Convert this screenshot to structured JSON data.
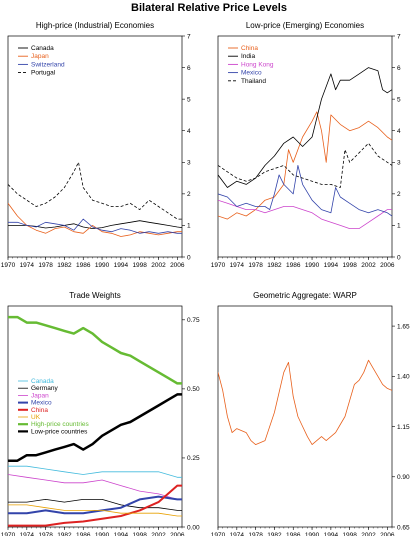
{
  "page_title": "Bilateral Relative Price Levels",
  "chart_data": [
    {
      "type": "line",
      "title": "High-price (Industrial) Economies",
      "ylim": [
        0,
        7
      ],
      "yticks": [
        "0",
        "1",
        "2",
        "3",
        "4",
        "5",
        "6",
        "7"
      ],
      "xticks": [
        "1970",
        "1974",
        "1978",
        "1982",
        "1986",
        "1990",
        "1994",
        "1998",
        "2002",
        "2006"
      ],
      "xlim": [
        1970,
        2007
      ],
      "grid": false,
      "legend_position": "top-left",
      "series": [
        {
          "name": "Canada",
          "color": "#000000",
          "dash": "solid",
          "x": [
            1970,
            1972,
            1974,
            1976,
            1978,
            1980,
            1982,
            1984,
            1986,
            1988,
            1990,
            1992,
            1994,
            1996,
            1998,
            2000,
            2002,
            2004,
            2006,
            2007
          ],
          "y": [
            1.0,
            1.0,
            1.0,
            0.97,
            0.92,
            0.95,
            1.0,
            1.05,
            0.95,
            0.9,
            0.93,
            1.0,
            1.05,
            1.1,
            1.15,
            1.1,
            1.05,
            1.0,
            0.95,
            0.93
          ]
        },
        {
          "name": "Japan",
          "color": "#e8601c",
          "dash": "solid",
          "x": [
            1970,
            1972,
            1974,
            1976,
            1978,
            1980,
            1982,
            1984,
            1986,
            1988,
            1990,
            1992,
            1994,
            1996,
            1998,
            2000,
            2002,
            2004,
            2006,
            2007
          ],
          "y": [
            1.7,
            1.3,
            1.0,
            0.85,
            0.75,
            0.9,
            0.95,
            0.8,
            0.75,
            1.0,
            0.8,
            0.75,
            0.65,
            0.7,
            0.8,
            0.75,
            0.7,
            0.75,
            0.8,
            0.8
          ]
        },
        {
          "name": "Switzerland",
          "color": "#3344aa",
          "dash": "solid",
          "x": [
            1970,
            1972,
            1974,
            1976,
            1978,
            1980,
            1982,
            1984,
            1986,
            1988,
            1990,
            1992,
            1994,
            1996,
            1998,
            2000,
            2002,
            2004,
            2006,
            2007
          ],
          "y": [
            1.1,
            1.1,
            1.0,
            0.95,
            1.1,
            1.05,
            1.0,
            0.85,
            1.2,
            0.95,
            0.85,
            0.8,
            0.9,
            0.85,
            0.75,
            0.8,
            0.75,
            0.8,
            0.75,
            0.75
          ]
        },
        {
          "name": "Portugal",
          "color": "#000000",
          "dash": "dashed",
          "x": [
            1970,
            1972,
            1974,
            1976,
            1978,
            1980,
            1982,
            1984,
            1985,
            1986,
            1988,
            1990,
            1992,
            1994,
            1996,
            1998,
            2000,
            2002,
            2004,
            2006,
            2007
          ],
          "y": [
            2.3,
            2.0,
            1.8,
            1.6,
            1.7,
            1.9,
            2.2,
            2.7,
            3.0,
            2.2,
            1.8,
            1.7,
            1.6,
            1.6,
            1.7,
            1.5,
            1.8,
            1.6,
            1.4,
            1.2,
            1.2
          ]
        }
      ]
    },
    {
      "type": "line",
      "title": "Low-price (Emerging) Economies",
      "ylim": [
        0,
        7
      ],
      "yticks": [
        "0",
        "1",
        "2",
        "3",
        "4",
        "5",
        "6",
        "7"
      ],
      "xticks": [
        "1970",
        "1974",
        "1978",
        "1982",
        "1986",
        "1990",
        "1994",
        "1998",
        "2002",
        "2006"
      ],
      "xlim": [
        1970,
        2007
      ],
      "grid": false,
      "legend_position": "top-left",
      "series": [
        {
          "name": "China",
          "color": "#e8601c",
          "dash": "solid",
          "x": [
            1970,
            1972,
            1974,
            1976,
            1978,
            1980,
            1982,
            1984,
            1985,
            1986,
            1988,
            1990,
            1991,
            1992,
            1993,
            1994,
            1996,
            1998,
            2000,
            2002,
            2004,
            2006,
            2007
          ],
          "y": [
            1.3,
            1.2,
            1.4,
            1.3,
            1.5,
            1.8,
            1.9,
            2.3,
            3.4,
            3.0,
            3.8,
            4.3,
            4.6,
            4.0,
            3.0,
            4.5,
            4.2,
            4.0,
            4.1,
            4.3,
            4.1,
            3.8,
            3.7
          ]
        },
        {
          "name": "India",
          "color": "#000000",
          "dash": "solid",
          "x": [
            1970,
            1972,
            1974,
            1976,
            1978,
            1980,
            1982,
            1984,
            1986,
            1988,
            1990,
            1992,
            1994,
            1995,
            1996,
            1998,
            2000,
            2002,
            2004,
            2005,
            2006,
            2007
          ],
          "y": [
            2.6,
            2.2,
            2.4,
            2.3,
            2.5,
            2.9,
            3.2,
            3.6,
            3.8,
            3.5,
            3.8,
            5.0,
            5.8,
            5.3,
            5.6,
            5.6,
            5.8,
            6.0,
            5.9,
            5.3,
            5.2,
            5.3
          ]
        },
        {
          "name": "Hong Kong",
          "color": "#cc44cc",
          "dash": "solid",
          "x": [
            1970,
            1972,
            1974,
            1976,
            1978,
            1980,
            1982,
            1984,
            1986,
            1988,
            1990,
            1992,
            1994,
            1996,
            1998,
            2000,
            2002,
            2004,
            2006,
            2007
          ],
          "y": [
            1.8,
            1.7,
            1.6,
            1.5,
            1.5,
            1.4,
            1.5,
            1.6,
            1.6,
            1.5,
            1.4,
            1.2,
            1.1,
            1.0,
            0.9,
            0.9,
            1.1,
            1.3,
            1.5,
            1.5
          ]
        },
        {
          "name": "Mexico",
          "color": "#3344aa",
          "dash": "solid",
          "x": [
            1970,
            1972,
            1974,
            1976,
            1978,
            1980,
            1981,
            1982,
            1983,
            1984,
            1986,
            1987,
            1988,
            1990,
            1992,
            1994,
            1995,
            1996,
            1998,
            2000,
            2002,
            2004,
            2006,
            2007
          ],
          "y": [
            2.0,
            1.9,
            1.6,
            1.7,
            1.6,
            1.6,
            1.5,
            2.0,
            2.6,
            2.3,
            2.0,
            2.9,
            2.3,
            1.8,
            1.5,
            1.4,
            2.2,
            1.9,
            1.7,
            1.5,
            1.4,
            1.5,
            1.4,
            1.3
          ]
        },
        {
          "name": "Thailand",
          "color": "#000000",
          "dash": "dashed",
          "x": [
            1970,
            1972,
            1974,
            1976,
            1978,
            1980,
            1982,
            1984,
            1986,
            1988,
            1990,
            1992,
            1994,
            1996,
            1997,
            1998,
            2000,
            2002,
            2004,
            2006,
            2007
          ],
          "y": [
            2.9,
            2.7,
            2.5,
            2.4,
            2.5,
            2.7,
            2.8,
            2.9,
            2.6,
            2.5,
            2.4,
            2.3,
            2.3,
            2.2,
            3.4,
            3.0,
            3.3,
            3.6,
            3.2,
            3.0,
            2.9
          ]
        }
      ]
    },
    {
      "type": "line",
      "title": "Trade Weights",
      "ylim": [
        0,
        0.8
      ],
      "yticks": [
        "0.00",
        "0.25",
        "0.50",
        "0.75"
      ],
      "ytick_values": [
        0,
        0.25,
        0.5,
        0.75
      ],
      "xticks": [
        "1970",
        "1974",
        "1978",
        "1982",
        "1986",
        "1990",
        "1994",
        "1998",
        "2002",
        "2006"
      ],
      "xlim": [
        1970,
        2007
      ],
      "grid": false,
      "legend_position": "center-left",
      "series": [
        {
          "name": "Canada",
          "color": "#44bbdd",
          "dash": "solid",
          "width": 0.8,
          "x": [
            1970,
            1974,
            1978,
            1982,
            1986,
            1990,
            1994,
            1998,
            2002,
            2006,
            2007
          ],
          "y": [
            0.22,
            0.22,
            0.21,
            0.2,
            0.19,
            0.2,
            0.2,
            0.2,
            0.2,
            0.18,
            0.18
          ]
        },
        {
          "name": "Germany",
          "color": "#000000",
          "dash": "solid",
          "width": 0.8,
          "x": [
            1970,
            1974,
            1978,
            1982,
            1986,
            1990,
            1994,
            1998,
            2002,
            2006,
            2007
          ],
          "y": [
            0.09,
            0.09,
            0.1,
            0.09,
            0.1,
            0.1,
            0.08,
            0.07,
            0.07,
            0.06,
            0.06
          ]
        },
        {
          "name": "Japan",
          "color": "#cc44cc",
          "dash": "solid",
          "width": 0.8,
          "x": [
            1970,
            1974,
            1978,
            1982,
            1986,
            1990,
            1994,
            1998,
            2002,
            2006,
            2007
          ],
          "y": [
            0.19,
            0.18,
            0.17,
            0.16,
            0.16,
            0.17,
            0.15,
            0.13,
            0.12,
            0.1,
            0.1
          ]
        },
        {
          "name": "Mexico",
          "color": "#3344aa",
          "dash": "solid",
          "width": 2.0,
          "x": [
            1970,
            1974,
            1978,
            1982,
            1986,
            1990,
            1994,
            1998,
            2002,
            2006,
            2007
          ],
          "y": [
            0.05,
            0.05,
            0.06,
            0.05,
            0.05,
            0.06,
            0.07,
            0.1,
            0.11,
            0.1,
            0.1
          ]
        },
        {
          "name": "China",
          "color": "#dd2222",
          "dash": "solid",
          "width": 2.0,
          "x": [
            1970,
            1974,
            1978,
            1980,
            1982,
            1986,
            1990,
            1994,
            1998,
            2002,
            2004,
            2006,
            2007
          ],
          "y": [
            0.005,
            0.005,
            0.005,
            0.01,
            0.015,
            0.02,
            0.03,
            0.04,
            0.06,
            0.09,
            0.12,
            0.15,
            0.15
          ]
        },
        {
          "name": "UK",
          "color": "#e8a000",
          "dash": "solid",
          "width": 0.8,
          "x": [
            1970,
            1974,
            1978,
            1982,
            1986,
            1990,
            1994,
            1998,
            2002,
            2006,
            2007
          ],
          "y": [
            0.08,
            0.08,
            0.07,
            0.06,
            0.06,
            0.06,
            0.05,
            0.05,
            0.05,
            0.04,
            0.04
          ]
        },
        {
          "name": "High-price countries",
          "color": "#66bb33",
          "dash": "solid",
          "width": 2.5,
          "x": [
            1970,
            1972,
            1974,
            1976,
            1978,
            1980,
            1982,
            1984,
            1986,
            1988,
            1990,
            1992,
            1994,
            1996,
            1998,
            2000,
            2002,
            2004,
            2006,
            2007
          ],
          "y": [
            0.76,
            0.76,
            0.74,
            0.74,
            0.73,
            0.72,
            0.71,
            0.7,
            0.72,
            0.7,
            0.67,
            0.65,
            0.63,
            0.62,
            0.6,
            0.58,
            0.56,
            0.54,
            0.52,
            0.52
          ]
        },
        {
          "name": "Low-price countries",
          "color": "#000000",
          "dash": "solid",
          "width": 2.5,
          "x": [
            1970,
            1972,
            1974,
            1976,
            1978,
            1980,
            1982,
            1984,
            1986,
            1988,
            1990,
            1992,
            1994,
            1996,
            1998,
            2000,
            2002,
            2004,
            2006,
            2007
          ],
          "y": [
            0.24,
            0.24,
            0.26,
            0.26,
            0.27,
            0.28,
            0.29,
            0.3,
            0.28,
            0.3,
            0.33,
            0.35,
            0.37,
            0.38,
            0.4,
            0.42,
            0.44,
            0.46,
            0.48,
            0.48
          ]
        }
      ]
    },
    {
      "type": "line",
      "title": "Geometric Aggregate: WARP",
      "ylim": [
        0.65,
        1.75
      ],
      "yticks": [
        "0.65",
        "0.90",
        "1.15",
        "1.40",
        "1.65"
      ],
      "ytick_values": [
        0.65,
        0.9,
        1.15,
        1.4,
        1.65
      ],
      "xticks": [
        "1970",
        "1974",
        "1978",
        "1982",
        "1986",
        "1990",
        "1994",
        "1998",
        "2002",
        "2006"
      ],
      "xlim": [
        1970,
        2007
      ],
      "grid": false,
      "series": [
        {
          "name": "",
          "color": "#e8601c",
          "dash": "solid",
          "width": 0.8,
          "x": [
            1970,
            1971,
            1972,
            1973,
            1974,
            1975,
            1976,
            1977,
            1978,
            1979,
            1980,
            1981,
            1982,
            1983,
            1984,
            1985,
            1986,
            1987,
            1988,
            1989,
            1990,
            1991,
            1992,
            1993,
            1994,
            1995,
            1996,
            1997,
            1998,
            1999,
            2000,
            2001,
            2002,
            2003,
            2004,
            2005,
            2006,
            2007
          ],
          "y": [
            1.42,
            1.33,
            1.2,
            1.12,
            1.14,
            1.13,
            1.12,
            1.08,
            1.06,
            1.07,
            1.08,
            1.15,
            1.22,
            1.32,
            1.42,
            1.47,
            1.3,
            1.2,
            1.15,
            1.1,
            1.06,
            1.08,
            1.1,
            1.08,
            1.1,
            1.12,
            1.16,
            1.2,
            1.28,
            1.36,
            1.38,
            1.42,
            1.48,
            1.44,
            1.4,
            1.36,
            1.34,
            1.33
          ]
        }
      ]
    }
  ]
}
